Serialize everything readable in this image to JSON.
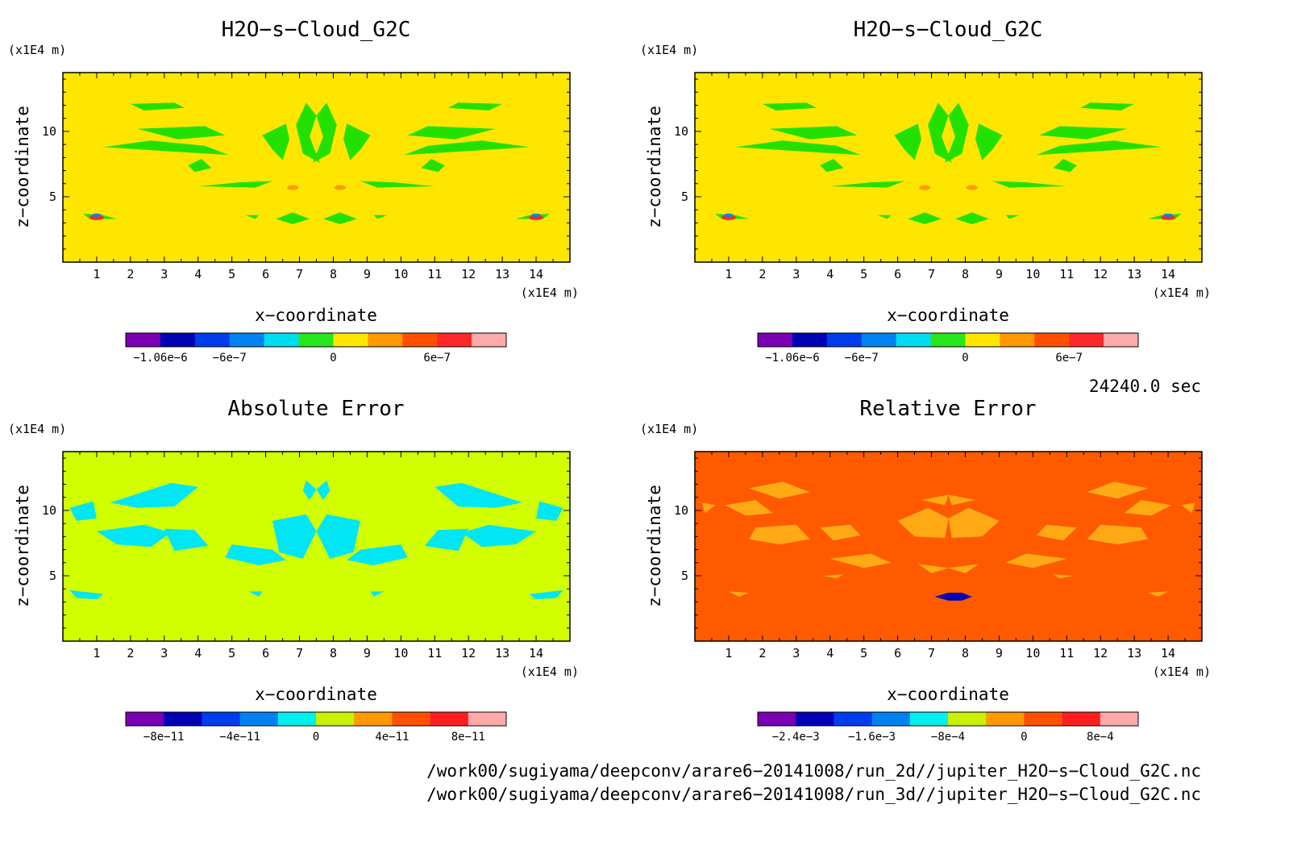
{
  "panels": [
    {
      "title": "H2O−s−Cloud_G2C",
      "unit_y": "(x1E4 m)",
      "unit_x": "(x1E4 m)",
      "xlabel": "x−coordinate",
      "ylabel": "z−coordinate",
      "x_ticks": [
        "1",
        "2",
        "3",
        "4",
        "5",
        "6",
        "7",
        "8",
        "9",
        "10",
        "11",
        "12",
        "13",
        "14"
      ],
      "y_ticks": [
        "5",
        "10"
      ],
      "background": "#ffe600",
      "blob_color": "#22e000",
      "colorbar": {
        "colors": [
          "#7a00b4",
          "#0000b4",
          "#003ceb",
          "#0082f0",
          "#00dcf0",
          "#28e61e",
          "#ffe600",
          "#ff9900",
          "#ff5000",
          "#ff2828",
          "#ffaaaa"
        ],
        "labels": [
          "−1.06e−6",
          "−6e−7",
          "0",
          "6e−7"
        ]
      }
    },
    {
      "title": "H2O−s−Cloud_G2C",
      "unit_y": "(x1E4 m)",
      "unit_x": "(x1E4 m)",
      "xlabel": "x−coordinate",
      "ylabel": "z−coordinate",
      "x_ticks": [
        "1",
        "2",
        "3",
        "4",
        "5",
        "6",
        "7",
        "8",
        "9",
        "10",
        "11",
        "12",
        "13",
        "14"
      ],
      "y_ticks": [
        "5",
        "10"
      ],
      "background": "#ffe600",
      "blob_color": "#22e000",
      "colorbar": {
        "colors": [
          "#7a00b4",
          "#0000b4",
          "#003ceb",
          "#0082f0",
          "#00dcf0",
          "#28e61e",
          "#ffe600",
          "#ff9900",
          "#ff5000",
          "#ff2828",
          "#ffaaaa"
        ],
        "labels": [
          "−1.06e−6",
          "−6e−7",
          "0",
          "6e−7"
        ]
      }
    },
    {
      "title": "Absolute Error",
      "unit_y": "(x1E4 m)",
      "unit_x": "(x1E4 m)",
      "xlabel": "x−coordinate",
      "ylabel": "z−coordinate",
      "x_ticks": [
        "1",
        "2",
        "3",
        "4",
        "5",
        "6",
        "7",
        "8",
        "9",
        "10",
        "11",
        "12",
        "13",
        "14"
      ],
      "y_ticks": [
        "5",
        "10"
      ],
      "background": "#d2ff00",
      "blob_color": "#00e6f5",
      "colorbar": {
        "colors": [
          "#7a00b4",
          "#0000b4",
          "#003ceb",
          "#0082f0",
          "#00f0f0",
          "#c8f000",
          "#ff9900",
          "#ff5000",
          "#ff1e1e",
          "#ffaaaa"
        ],
        "labels": [
          "−8e−11",
          "−4e−11",
          "0",
          "4e−11",
          "8e−11"
        ]
      }
    },
    {
      "title": "Relative Error",
      "unit_y": "(x1E4 m)",
      "unit_x": "(x1E4 m)",
      "xlabel": "x−coordinate",
      "ylabel": "z−coordinate",
      "x_ticks": [
        "1",
        "2",
        "3",
        "4",
        "5",
        "6",
        "7",
        "8",
        "9",
        "10",
        "11",
        "12",
        "13",
        "14"
      ],
      "y_ticks": [
        "5",
        "10"
      ],
      "background": "#ff5a00",
      "blob_color": "#ffaa14",
      "colorbar": {
        "colors": [
          "#7a00b4",
          "#0000b4",
          "#003ceb",
          "#0082f0",
          "#00f0f0",
          "#c8f000",
          "#ff9900",
          "#ff5000",
          "#ff1e1e",
          "#ffaaaa"
        ],
        "labels": [
          "−2.4e−3",
          "−1.6e−3",
          "−8e−4",
          "0",
          "8e−4"
        ]
      }
    }
  ],
  "time_label": "24240.0 sec",
  "file_paths": [
    "/work00/sugiyama/deepconv/arare6−20141008/run_2d//jupiter_H2O−s−Cloud_G2C.nc",
    "/work00/sugiyama/deepconv/arare6−20141008/run_3d//jupiter_H2O−s−Cloud_G2C.nc"
  ],
  "chart_data": [
    {
      "type": "heatmap",
      "title": "H2O−s−Cloud_G2C",
      "xlabel": "x−coordinate",
      "ylabel": "z−coordinate",
      "xlim": [
        0,
        15
      ],
      "ylim": [
        0,
        14.5
      ],
      "colorbar_ticks": [
        -1.06e-06,
        -6e-07,
        0,
        6e-07
      ]
    },
    {
      "type": "heatmap",
      "title": "H2O−s−Cloud_G2C",
      "xlabel": "x−coordinate",
      "ylabel": "z−coordinate",
      "xlim": [
        0,
        15
      ],
      "ylim": [
        0,
        14.5
      ],
      "colorbar_ticks": [
        -1.06e-06,
        -6e-07,
        0,
        6e-07
      ]
    },
    {
      "type": "heatmap",
      "title": "Absolute Error",
      "xlabel": "x−coordinate",
      "ylabel": "z−coordinate",
      "xlim": [
        0,
        15
      ],
      "ylim": [
        0,
        14.5
      ],
      "colorbar_ticks": [
        -8e-11,
        -4e-11,
        0,
        4e-11,
        8e-11
      ]
    },
    {
      "type": "heatmap",
      "title": "Relative Error",
      "xlabel": "x−coordinate",
      "ylabel": "z−coordinate",
      "xlim": [
        0,
        15
      ],
      "ylim": [
        0,
        14.5
      ],
      "colorbar_ticks": [
        -0.0024,
        -0.0016,
        -0.0008,
        0,
        0.0008
      ]
    }
  ]
}
